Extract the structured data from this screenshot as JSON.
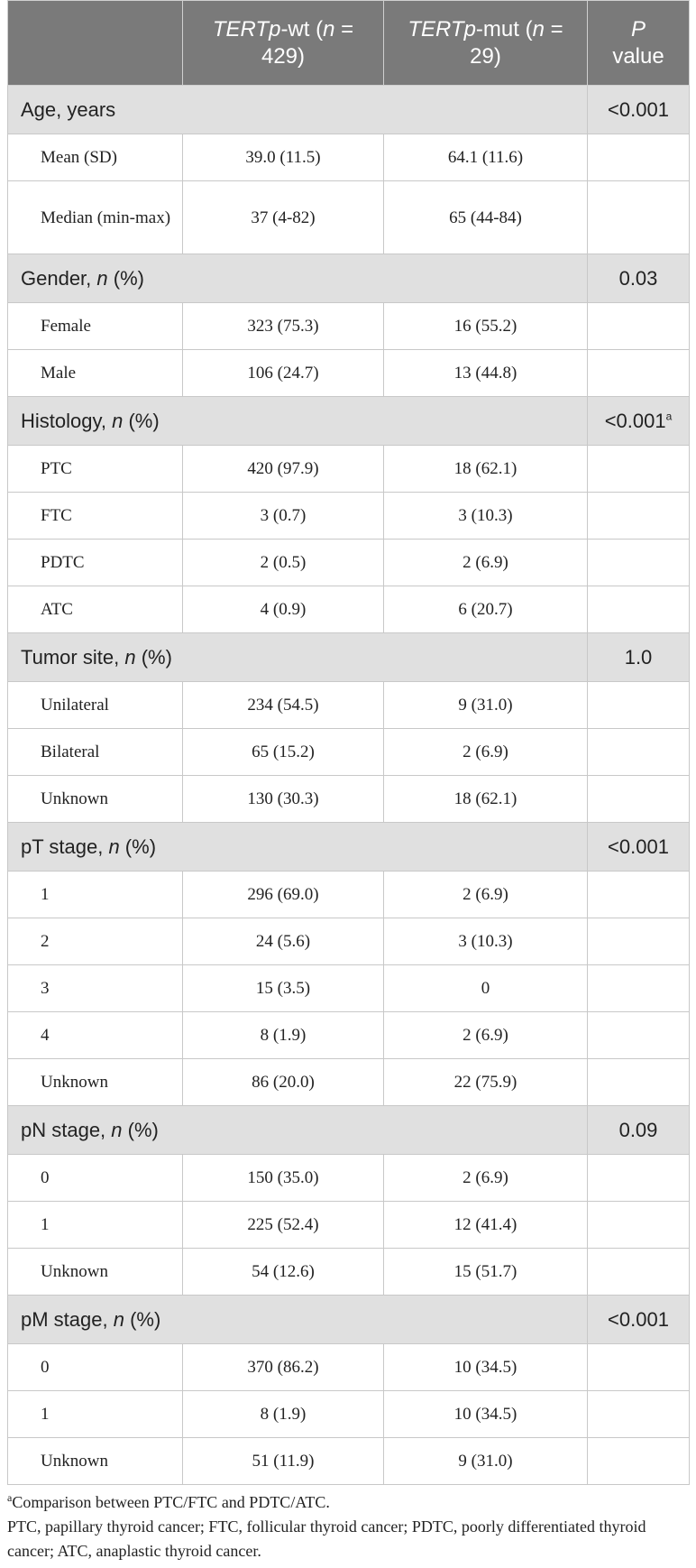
{
  "header": {
    "col1": "",
    "col2_italic": "TERTp",
    "col2_mid": "-wt (",
    "col2_n": "n",
    "col2_tail": " = 429)",
    "col3_italic": "TERTp",
    "col3_mid": "-mut (",
    "col3_n": "n",
    "col3_tail": " = 29)",
    "col4_italic": "P",
    "col4_tail": "value"
  },
  "groups": [
    {
      "label": "Age, years",
      "label_n": "",
      "label_tail": "",
      "p": "<0.001",
      "p_sup": "",
      "rows": [
        {
          "label": "Mean (SD)",
          "wt": "39.0 (11.5)",
          "mut": "64.1 (11.6)",
          "tall": false
        },
        {
          "label": "Median (min-max)",
          "wt": "37 (4-82)",
          "mut": "65 (44-84)",
          "tall": true
        }
      ]
    },
    {
      "label": "Gender, ",
      "label_n": "n",
      "label_tail": " (%)",
      "p": "0.03",
      "p_sup": "",
      "rows": [
        {
          "label": "Female",
          "wt": "323 (75.3)",
          "mut": "16 (55.2)"
        },
        {
          "label": "Male",
          "wt": "106 (24.7)",
          "mut": "13 (44.8)"
        }
      ]
    },
    {
      "label": "Histology, ",
      "label_n": "n",
      "label_tail": " (%)",
      "p": "<0.001",
      "p_sup": "a",
      "rows": [
        {
          "label": "PTC",
          "wt": "420 (97.9)",
          "mut": "18 (62.1)"
        },
        {
          "label": "FTC",
          "wt": "3 (0.7)",
          "mut": "3 (10.3)"
        },
        {
          "label": "PDTC",
          "wt": "2 (0.5)",
          "mut": "2 (6.9)"
        },
        {
          "label": "ATC",
          "wt": "4 (0.9)",
          "mut": "6 (20.7)"
        }
      ]
    },
    {
      "label": "Tumor site, ",
      "label_n": "n",
      "label_tail": " (%)",
      "p": "1.0",
      "p_sup": "",
      "rows": [
        {
          "label": "Unilateral",
          "wt": "234 (54.5)",
          "mut": "9 (31.0)"
        },
        {
          "label": "Bilateral",
          "wt": "65 (15.2)",
          "mut": "2 (6.9)"
        },
        {
          "label": "Unknown",
          "wt": "130 (30.3)",
          "mut": "18 (62.1)"
        }
      ]
    },
    {
      "label": "pT stage, ",
      "label_n": "n",
      "label_tail": " (%)",
      "p": "<0.001",
      "p_sup": "",
      "rows": [
        {
          "label": "1",
          "wt": "296 (69.0)",
          "mut": "2 (6.9)"
        },
        {
          "label": "2",
          "wt": "24 (5.6)",
          "mut": "3 (10.3)"
        },
        {
          "label": "3",
          "wt": "15 (3.5)",
          "mut": "0"
        },
        {
          "label": "4",
          "wt": "8 (1.9)",
          "mut": "2 (6.9)"
        },
        {
          "label": "Unknown",
          "wt": "86 (20.0)",
          "mut": "22 (75.9)"
        }
      ]
    },
    {
      "label": "pN stage, ",
      "label_n": "n",
      "label_tail": " (%)",
      "p": "0.09",
      "p_sup": "",
      "rows": [
        {
          "label": "0",
          "wt": "150 (35.0)",
          "mut": "2 (6.9)"
        },
        {
          "label": "1",
          "wt": "225 (52.4)",
          "mut": "12 (41.4)"
        },
        {
          "label": "Unknown",
          "wt": "54 (12.6)",
          "mut": "15 (51.7)"
        }
      ]
    },
    {
      "label": "pM stage, ",
      "label_n": "n",
      "label_tail": " (%)",
      "p": "<0.001",
      "p_sup": "",
      "rows": [
        {
          "label": "0",
          "wt": "370 (86.2)",
          "mut": "10 (34.5)"
        },
        {
          "label": "1",
          "wt": "8 (1.9)",
          "mut": "10 (34.5)"
        },
        {
          "label": "Unknown",
          "wt": "51 (11.9)",
          "mut": "9 (31.0)"
        }
      ]
    }
  ],
  "footnotes": {
    "a_marker": "a",
    "a_text": "Comparison between PTC/FTC and PDTC/ATC.",
    "abbrev": "PTC, papillary thyroid cancer; FTC, follicular thyroid cancer; PDTC, poorly differentiated thyroid cancer; ATC, anaplastic thyroid cancer."
  }
}
